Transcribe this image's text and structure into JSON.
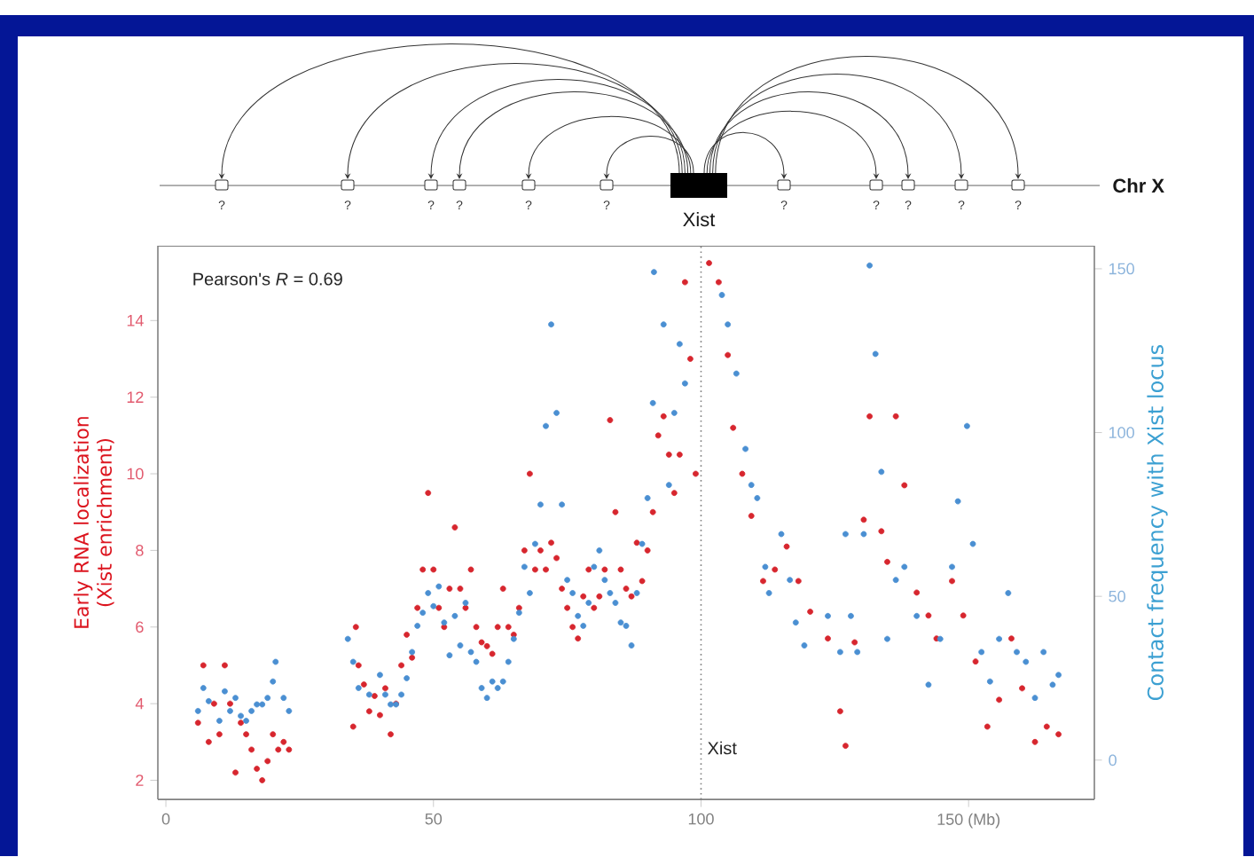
{
  "chart_data": {
    "type": "scatter",
    "marker": "circle",
    "ylabel": "Early RNA localization (Xist enrichment)",
    "y2label": "Contact frequency with Xist locus",
    "xlim": [
      -1.5,
      173.5
    ],
    "xticks": [
      0,
      50,
      100,
      {
        "value": 150,
        "label": "150 (Mb)"
      }
    ],
    "ylim": [
      1.5,
      15.95
    ],
    "yticks": [
      2,
      4,
      6,
      8,
      10,
      12,
      14
    ],
    "y2lim": [
      -12,
      157
    ],
    "y2ticks": [
      0,
      50,
      100,
      150
    ],
    "ref_lines": [
      {
        "axis": "x",
        "value": 100,
        "label": "Xist",
        "line_style": "dotted",
        "color": "#808080"
      }
    ],
    "annotations": [
      "Pearson's *R* = 0.69",
      "Chr X",
      "Xist",
      "?",
      "?",
      "?",
      "?",
      "?",
      "?",
      "?",
      "?",
      "?",
      "?",
      "?"
    ],
    "series": [
      {
        "color": "#d7262e",
        "x": [
          6,
          7,
          8,
          9,
          10,
          11,
          12,
          13,
          14,
          15,
          16,
          17,
          18,
          19,
          20,
          21,
          22,
          23,
          35,
          35.5,
          36,
          37,
          38,
          39,
          40,
          41,
          42,
          43,
          44,
          45,
          46,
          47,
          48,
          49,
          50,
          51,
          52,
          53,
          54,
          55,
          56,
          57,
          58,
          59,
          60,
          61,
          62,
          63,
          64,
          65,
          66,
          67,
          68,
          69,
          70,
          71,
          72,
          73,
          74,
          75,
          76,
          77,
          78,
          79,
          80,
          81,
          82,
          83,
          84,
          85,
          86,
          87,
          88,
          89,
          90,
          91,
          92,
          93,
          94,
          95,
          96,
          97,
          98,
          99,
          101.5,
          103.3,
          105,
          106,
          107.7,
          109.4,
          111.6,
          113.8,
          116,
          118.2,
          120.4,
          123.7,
          126,
          127,
          128.7,
          130.4,
          131.5,
          133.7,
          134.8,
          136.4,
          138,
          140.3,
          142.5,
          144,
          146.9,
          149,
          151.3,
          153.5,
          155.7,
          158,
          160,
          162.4,
          164.6,
          166.8
        ],
        "values": [
          3.5,
          5,
          3,
          4,
          3.2,
          5,
          4,
          2.2,
          3.5,
          3.2,
          2.8,
          2.3,
          2,
          2.5,
          3.2,
          2.8,
          3,
          2.8,
          3.4,
          6,
          5,
          4.5,
          3.8,
          4.2,
          3.7,
          4.4,
          3.2,
          4,
          5,
          5.8,
          5.2,
          6.5,
          7.5,
          9.5,
          7.5,
          6.5,
          6,
          7,
          8.6,
          7,
          6.5,
          7.5,
          6,
          5.6,
          5.5,
          5.3,
          6,
          7,
          6,
          5.8,
          6.5,
          8,
          10,
          7.5,
          8,
          7.5,
          8.2,
          7.8,
          7,
          6.5,
          6,
          5.7,
          6.8,
          7.5,
          6.5,
          6.8,
          7.5,
          11.4,
          9,
          7.5,
          7,
          6.8,
          8.2,
          7.2,
          8,
          9,
          11,
          11.5,
          10.5,
          9.5,
          10.5,
          15,
          13,
          10,
          15.5,
          15,
          13.1,
          11.2,
          10,
          8.9,
          7.2,
          7.5,
          8.1,
          7.2,
          6.4,
          5.7,
          3.8,
          2.9,
          5.6,
          8.8,
          11.5,
          8.5,
          7.7,
          11.5,
          9.7,
          6.9,
          6.3,
          5.7,
          7.2,
          6.3,
          5.1,
          3.4,
          4.1,
          5.7,
          4.4,
          3,
          3.4,
          3.2
        ]
      },
      {
        "color": "#4a8fd2",
        "axis": "y2",
        "x": [
          6,
          7,
          8,
          10,
          11,
          12,
          13,
          14,
          15,
          16,
          17,
          18,
          19,
          20,
          20.5,
          22,
          23,
          34,
          35,
          36,
          38,
          40,
          41,
          42,
          43,
          44,
          45,
          46,
          47,
          48,
          49,
          50,
          51,
          52,
          53,
          54,
          55,
          56,
          57,
          58,
          59,
          60,
          61,
          62,
          63,
          64,
          65,
          66,
          67,
          68,
          69,
          70,
          71,
          72,
          73,
          74,
          75,
          76,
          77,
          78,
          79,
          80,
          81,
          82,
          83,
          84,
          85,
          86,
          87,
          88,
          89,
          90,
          91,
          91.2,
          93,
          94,
          95,
          96,
          97,
          103.9,
          105,
          106.6,
          108.3,
          109.4,
          110.5,
          112,
          112.7,
          115,
          116.6,
          117.7,
          119.3,
          123.7,
          126,
          127,
          128,
          129.2,
          130.4,
          131.5,
          132.6,
          133.7,
          134.8,
          136.4,
          138,
          140.3,
          142.5,
          144.7,
          146.9,
          148,
          149.7,
          150.8,
          152.4,
          154,
          155.7,
          157.4,
          159,
          160.7,
          162.4,
          164,
          165.7,
          166.8
        ],
        "values": [
          15,
          22,
          18,
          12,
          21,
          15,
          19,
          13.5,
          12,
          15,
          17,
          17,
          19,
          24,
          30,
          19,
          15,
          37,
          30,
          22,
          20,
          26,
          20,
          17,
          17,
          20,
          25,
          33,
          41,
          45,
          51,
          47,
          53,
          42,
          32,
          44,
          35,
          48,
          33,
          30,
          22,
          19,
          24,
          22,
          24,
          30,
          37,
          45,
          59,
          51,
          66,
          78,
          102,
          133,
          106,
          78,
          55,
          51,
          44,
          41,
          48,
          59,
          64,
          55,
          51,
          48,
          42,
          41,
          35,
          51,
          66,
          80,
          109,
          149,
          133,
          84,
          106,
          127,
          115,
          142,
          133,
          118,
          95,
          84,
          80,
          59,
          51,
          69,
          55,
          42,
          35,
          44,
          33,
          69,
          44,
          33,
          69,
          151,
          124,
          88,
          37,
          55,
          59,
          44,
          23,
          37,
          59,
          79,
          102,
          66,
          33,
          24,
          37,
          51,
          33,
          30,
          19,
          33,
          23,
          26
        ]
      }
    ]
  }
}
